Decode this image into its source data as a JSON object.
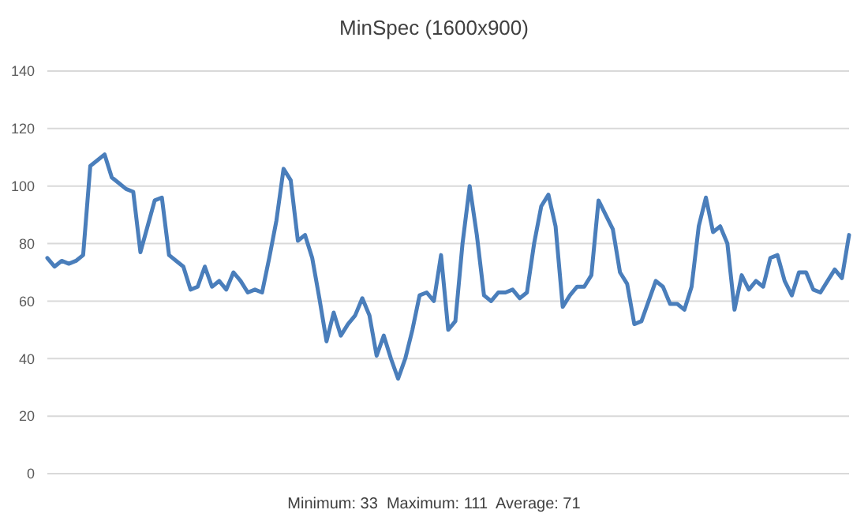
{
  "chart_data": {
    "type": "line",
    "title": "MinSpec (1600x900)",
    "categories": [
      null,
      null,
      null,
      null,
      null,
      null,
      null,
      null,
      null,
      null,
      null,
      null,
      null,
      null,
      null,
      null,
      null,
      null,
      null,
      null,
      null,
      null,
      null,
      null,
      null,
      null,
      null,
      null,
      null,
      null,
      null,
      null,
      null,
      null,
      null,
      null,
      null,
      null,
      null,
      null,
      null,
      null,
      null,
      null,
      null,
      null,
      null,
      null,
      null,
      null,
      null,
      null,
      null,
      null,
      null,
      null,
      null,
      null,
      null,
      null,
      null,
      null,
      null,
      null,
      null,
      null,
      null,
      null,
      null,
      null,
      null,
      null,
      null,
      null,
      null,
      null,
      null,
      null,
      null,
      null,
      null,
      null,
      null,
      null,
      null,
      null,
      null,
      null,
      null,
      null,
      null,
      null,
      null,
      null,
      null,
      null,
      null,
      null,
      null,
      null,
      null,
      null,
      null,
      null,
      null,
      null,
      null,
      null,
      null,
      null,
      null,
      null,
      null
    ],
    "series": [
      {
        "color": "#4a7ebb",
        "values": [
          75,
          72,
          74,
          73,
          74,
          76,
          107,
          109,
          111,
          103,
          101,
          99,
          98,
          77,
          86,
          95,
          96,
          76,
          74,
          72,
          64,
          65,
          72,
          65,
          67,
          64,
          70,
          67,
          63,
          64,
          63,
          75,
          88,
          106,
          102,
          81,
          83,
          75,
          61,
          46,
          56,
          48,
          52,
          55,
          61,
          55,
          41,
          48,
          40,
          33,
          40,
          50,
          62,
          63,
          60,
          76,
          50,
          53,
          80,
          100,
          83,
          62,
          60,
          63,
          63,
          64,
          61,
          63,
          80,
          93,
          97,
          86,
          58,
          62,
          65,
          65,
          69,
          95,
          90,
          85,
          70,
          66,
          52,
          53,
          60,
          67,
          65,
          59,
          59,
          57,
          65,
          86,
          96,
          84,
          86,
          80,
          57,
          69,
          64,
          67,
          65,
          75,
          76,
          67,
          62,
          70,
          70,
          64,
          63,
          67,
          71,
          68,
          83
        ]
      }
    ],
    "ylim": [
      0,
      140
    ],
    "yticks": [
      0,
      20,
      40,
      60,
      80,
      100,
      120,
      140
    ],
    "grid": "y",
    "annotations": [
      "Minimum: 33  Maximum: 111  Average: 71"
    ]
  }
}
